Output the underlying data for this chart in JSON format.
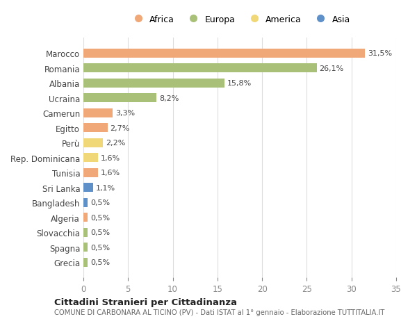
{
  "countries": [
    "Marocco",
    "Romania",
    "Albania",
    "Ucraina",
    "Camerun",
    "Egitto",
    "Perù",
    "Rep. Dominicana",
    "Tunisia",
    "Sri Lanka",
    "Bangladesh",
    "Algeria",
    "Slovacchia",
    "Spagna",
    "Grecia"
  ],
  "values": [
    31.5,
    26.1,
    15.8,
    8.2,
    3.3,
    2.7,
    2.2,
    1.6,
    1.6,
    1.1,
    0.5,
    0.5,
    0.5,
    0.5,
    0.5
  ],
  "labels": [
    "31,5%",
    "26,1%",
    "15,8%",
    "8,2%",
    "3,3%",
    "2,7%",
    "2,2%",
    "1,6%",
    "1,6%",
    "1,1%",
    "0,5%",
    "0,5%",
    "0,5%",
    "0,5%",
    "0,5%"
  ],
  "continents": [
    "Africa",
    "Europa",
    "Europa",
    "Europa",
    "Africa",
    "Africa",
    "America",
    "America",
    "Africa",
    "Asia",
    "Asia",
    "Africa",
    "Europa",
    "Europa",
    "Europa"
  ],
  "colors": {
    "Africa": "#F0A878",
    "Europa": "#A8C078",
    "America": "#F0D878",
    "Asia": "#6090C8"
  },
  "legend_order": [
    "Africa",
    "Europa",
    "America",
    "Asia"
  ],
  "title": "Cittadini Stranieri per Cittadinanza",
  "subtitle": "COMUNE DI CARBONARA AL TICINO (PV) - Dati ISTAT al 1° gennaio - Elaborazione TUTTITALIA.IT",
  "xlim": [
    0,
    35
  ],
  "xticks": [
    0,
    5,
    10,
    15,
    20,
    25,
    30,
    35
  ],
  "background_color": "#ffffff",
  "grid_color": "#dddddd",
  "bar_height": 0.6
}
